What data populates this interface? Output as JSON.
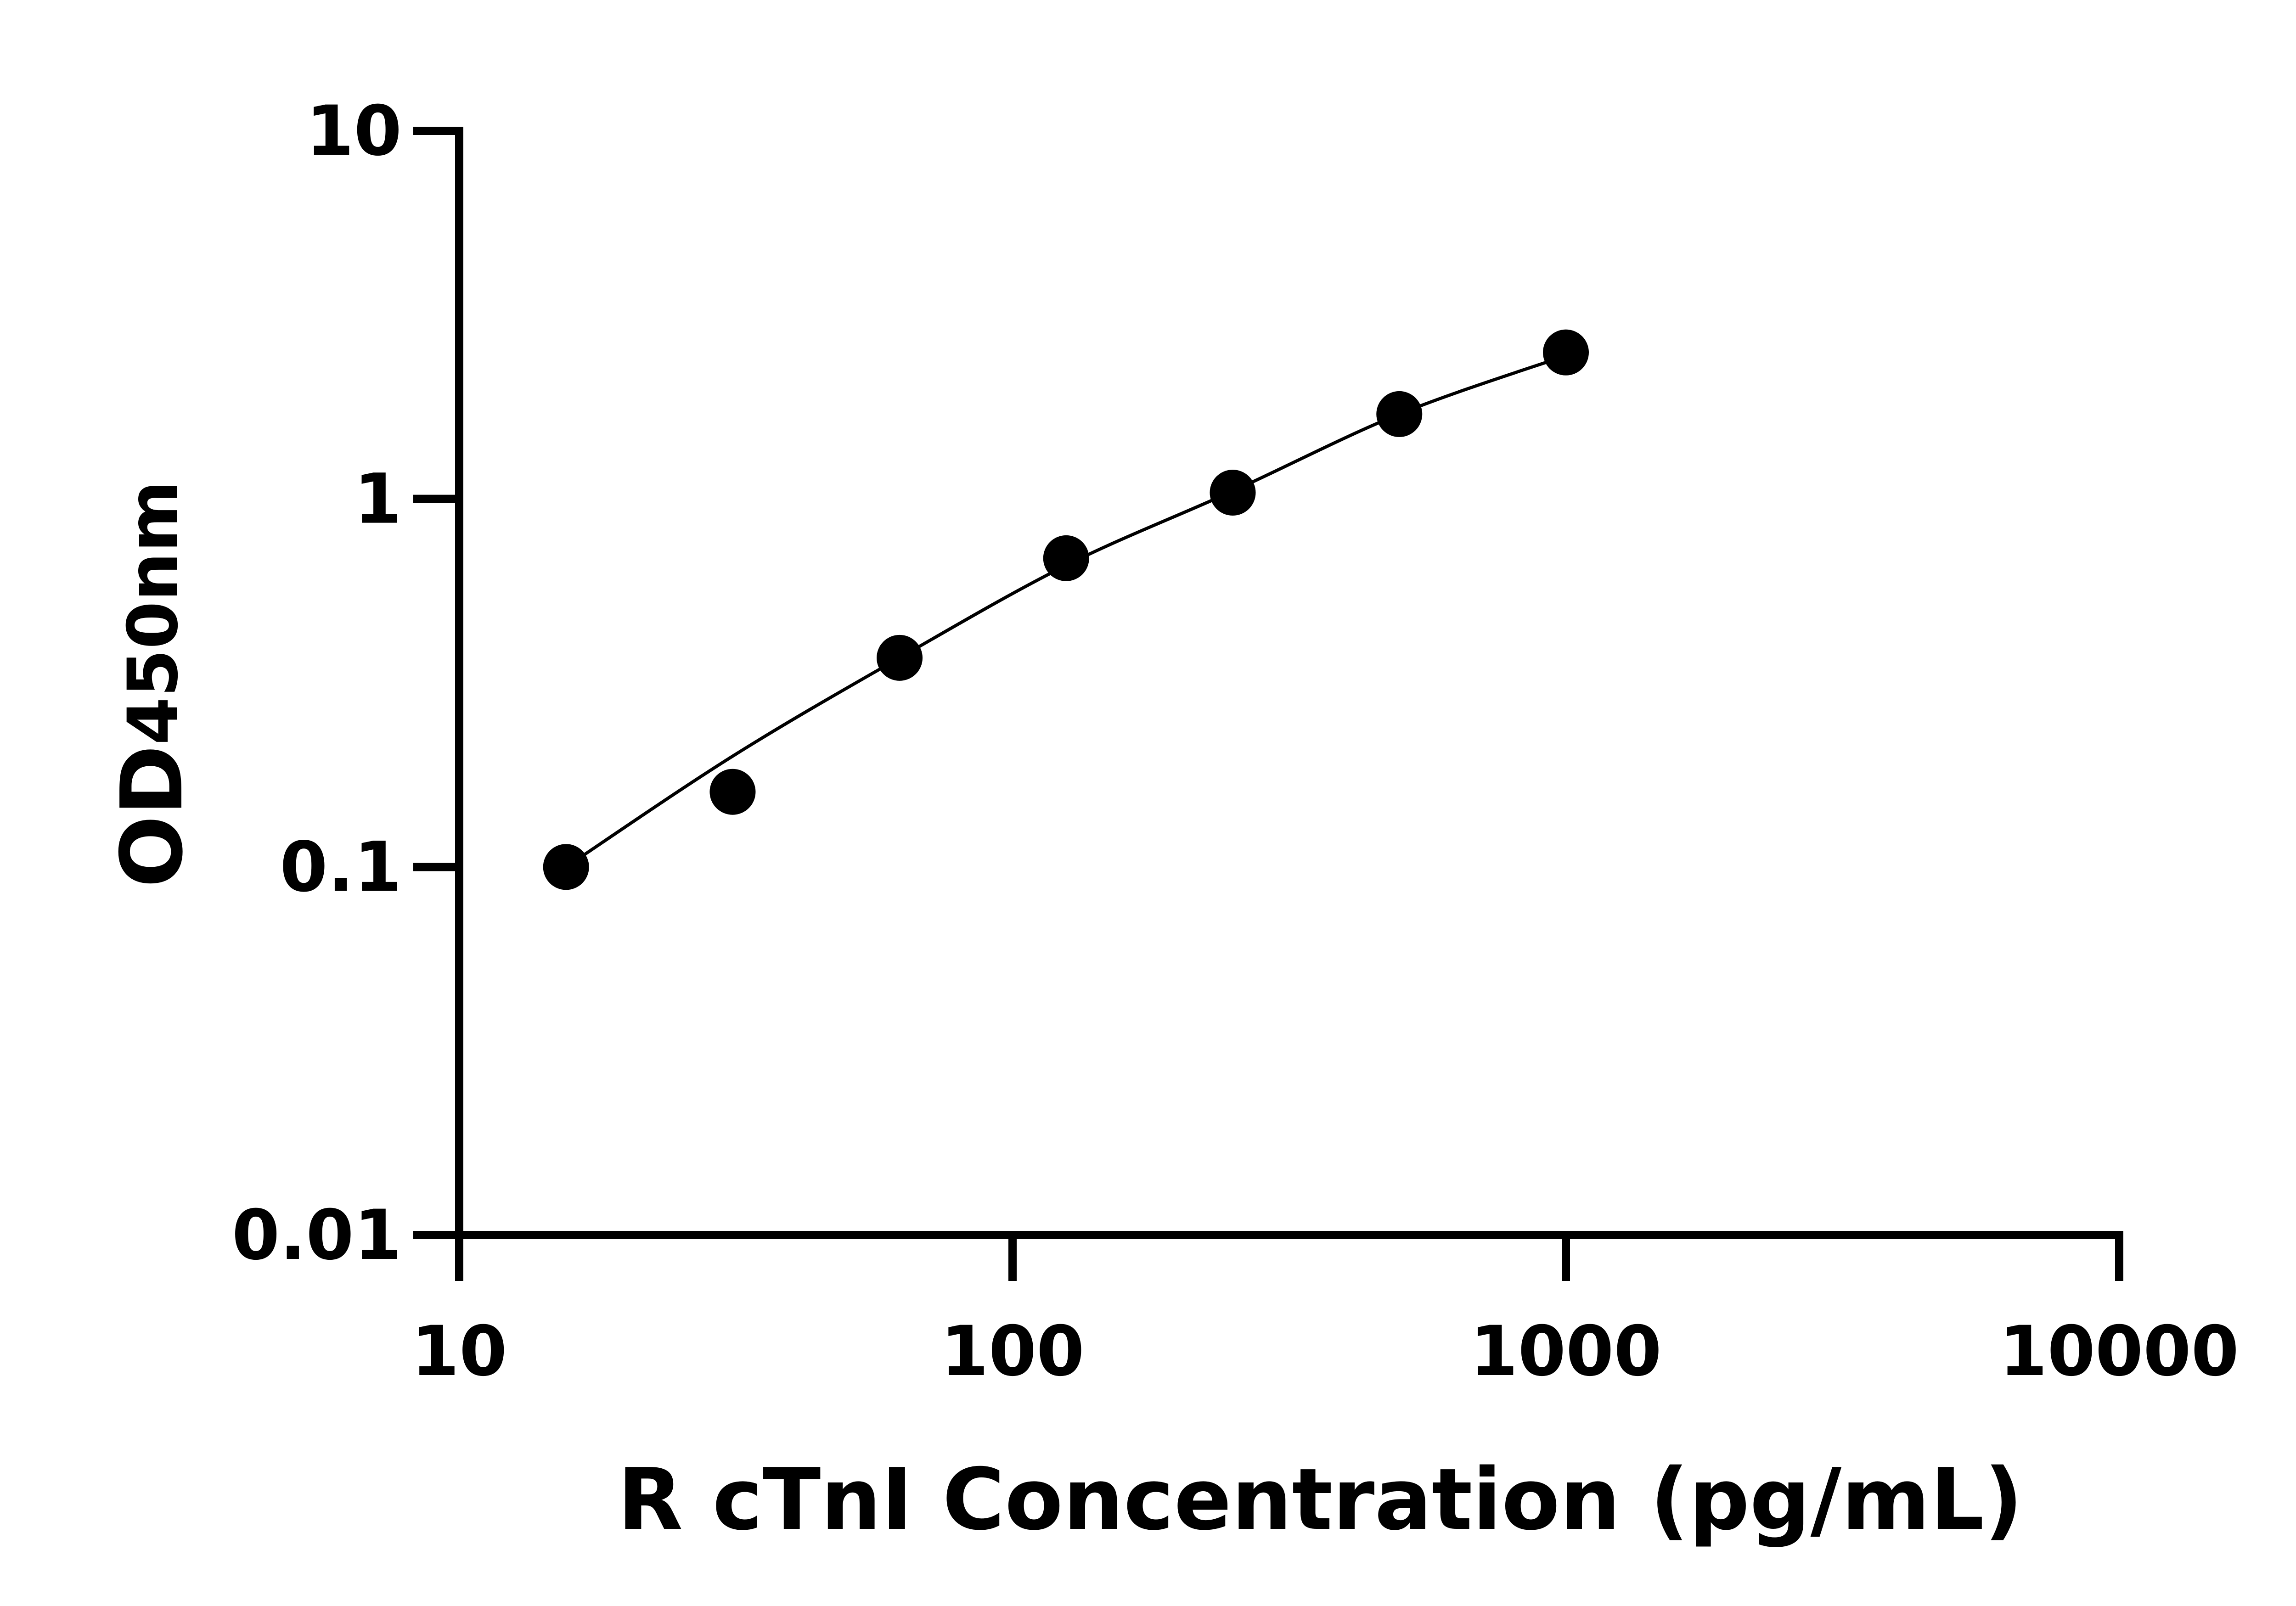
{
  "chart_data": {
    "type": "scatter",
    "xlabel": "R cTnI Concentration (pg/mL)",
    "ylabel_main": "OD",
    "ylabel_sub": "450nm",
    "x_scale": "log",
    "y_scale": "log",
    "xlim": [
      10,
      10000
    ],
    "ylim": [
      0.01,
      10
    ],
    "x_ticks": [
      {
        "value": 10,
        "label": "10"
      },
      {
        "value": 100,
        "label": "100"
      },
      {
        "value": 1000,
        "label": "1000"
      },
      {
        "value": 10000,
        "label": "10000"
      }
    ],
    "y_ticks": [
      {
        "value": 0.01,
        "label": "0.01"
      },
      {
        "value": 0.1,
        "label": "0.1"
      },
      {
        "value": 1,
        "label": "1"
      },
      {
        "value": 10,
        "label": "10"
      }
    ],
    "points": [
      {
        "x": 15.6,
        "y": 0.1
      },
      {
        "x": 31.2,
        "y": 0.16
      },
      {
        "x": 62.5,
        "y": 0.37
      },
      {
        "x": 125,
        "y": 0.69
      },
      {
        "x": 250,
        "y": 1.04
      },
      {
        "x": 500,
        "y": 1.7
      },
      {
        "x": 1000,
        "y": 2.5
      }
    ],
    "fit_curve": [
      {
        "x": 15.6,
        "y": 0.1
      },
      {
        "x": 31.2,
        "y": 0.2
      },
      {
        "x": 62.5,
        "y": 0.37
      },
      {
        "x": 125,
        "y": 0.66
      },
      {
        "x": 250,
        "y": 1.05
      },
      {
        "x": 500,
        "y": 1.7
      },
      {
        "x": 1000,
        "y": 2.45
      }
    ],
    "grid": false,
    "legend": "none"
  }
}
